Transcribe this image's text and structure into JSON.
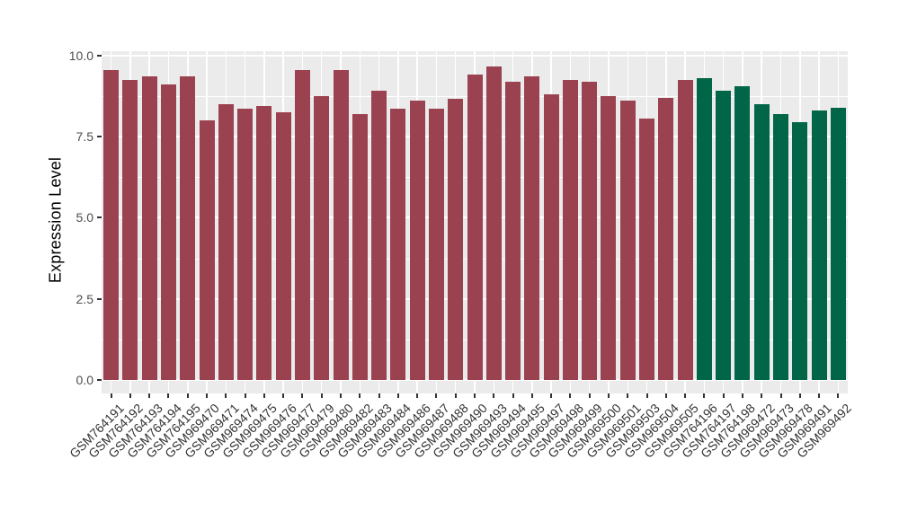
{
  "chart_data": {
    "type": "bar",
    "title": "",
    "xlabel": "",
    "ylabel": "Expression Level",
    "ylim": [
      0,
      10.2
    ],
    "yticks": [
      0,
      2.5,
      5,
      7.5,
      10
    ],
    "ytick_labels": [
      "0.0",
      "2.5",
      "5.0",
      "7.5",
      "10.0"
    ],
    "yticks_minor": [
      1.25,
      3.75,
      6.25,
      8.75
    ],
    "grid": true,
    "legend_position": "none",
    "bar_width_fraction": 0.8,
    "categories": [
      "GSM764191",
      "GSM764192",
      "GSM764193",
      "GSM764194",
      "GSM764195",
      "GSM969470",
      "GSM969471",
      "GSM969474",
      "GSM969475",
      "GSM969476",
      "GSM969477",
      "GSM969479",
      "GSM969480",
      "GSM969482",
      "GSM969483",
      "GSM969484",
      "GSM969486",
      "GSM969487",
      "GSM969488",
      "GSM969490",
      "GSM969493",
      "GSM969494",
      "GSM969495",
      "GSM969497",
      "GSM969498",
      "GSM969499",
      "GSM969500",
      "GSM969501",
      "GSM969503",
      "GSM969504",
      "GSM969505",
      "GSM764196",
      "GSM764197",
      "GSM764198",
      "GSM969472",
      "GSM969473",
      "GSM969478",
      "GSM969491",
      "GSM969492"
    ],
    "values": [
      9.55,
      9.25,
      9.35,
      9.1,
      9.35,
      8.0,
      8.5,
      8.35,
      8.45,
      8.25,
      9.55,
      8.75,
      9.55,
      8.2,
      8.9,
      8.35,
      8.6,
      8.35,
      8.65,
      9.4,
      9.65,
      9.2,
      9.35,
      8.8,
      9.25,
      9.2,
      8.75,
      8.6,
      8.05,
      8.7,
      9.25,
      9.3,
      8.9,
      9.05,
      8.5,
      8.2,
      7.95,
      8.3,
      8.4
    ],
    "color_groups": [
      "group1",
      "group1",
      "group1",
      "group1",
      "group1",
      "group1",
      "group1",
      "group1",
      "group1",
      "group1",
      "group1",
      "group1",
      "group1",
      "group1",
      "group1",
      "group1",
      "group1",
      "group1",
      "group1",
      "group1",
      "group1",
      "group1",
      "group1",
      "group1",
      "group1",
      "group1",
      "group1",
      "group1",
      "group1",
      "group1",
      "group1",
      "group2",
      "group2",
      "group2",
      "group2",
      "group2",
      "group2",
      "group2",
      "group2"
    ],
    "palette": {
      "group1": "#9A4250",
      "group2": "#006647"
    }
  },
  "style": {
    "panel_background": "#EBEBEB",
    "grid_color": "#FFFFFF",
    "axis_text_color": "#4D4D4D",
    "axis_title_color": "#000000",
    "tick_color": "#333333"
  }
}
